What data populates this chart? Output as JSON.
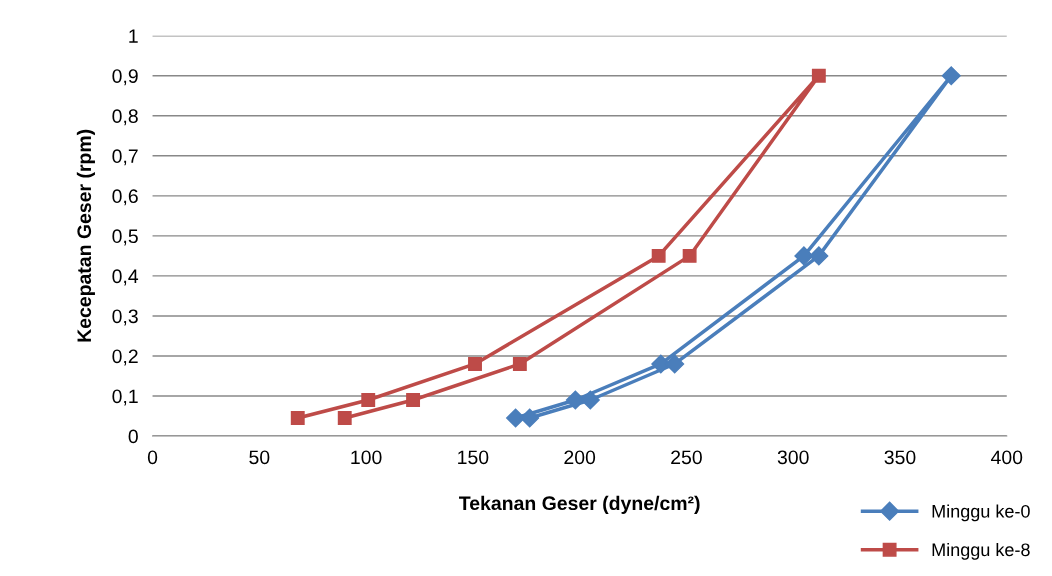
{
  "chart_data": {
    "type": "line",
    "xlabel": "Tekanan Geser (dyne/cm²)",
    "ylabel": "Kecepatan Geser (rpm)",
    "series": [
      {
        "name": "Minggu ke-0",
        "color": "#4a7ebb",
        "marker": "diamond",
        "x": [
          170,
          198,
          238,
          305,
          374,
          312,
          244.5,
          205,
          176.6
        ],
        "values": [
          0.045,
          0.09,
          0.18,
          0.45,
          0.9,
          0.45,
          0.18,
          0.09,
          0.045
        ]
      },
      {
        "name": "Minggu ke-8",
        "color": "#be4b48",
        "marker": "square",
        "x": [
          68,
          101,
          151,
          237,
          312,
          251.5,
          172,
          122,
          90
        ],
        "values": [
          0.045,
          0.09,
          0.18,
          0.45,
          0.9,
          0.45,
          0.18,
          0.09,
          0.045
        ]
      }
    ],
    "xlim": [
      0,
      400
    ],
    "xticks": [
      0,
      50,
      100,
      150,
      200,
      250,
      300,
      350,
      400
    ],
    "ylim": [
      0,
      1
    ],
    "yticks": [
      0,
      {
        "value": 0.1,
        "label": "0,1"
      },
      {
        "value": 0.2,
        "label": "0,2"
      },
      {
        "value": 0.3,
        "label": "0,3"
      },
      {
        "value": 0.4,
        "label": "0,4"
      },
      {
        "value": 0.5,
        "label": "0,5"
      },
      {
        "value": 0.6,
        "label": "0,6"
      },
      {
        "value": 0.7,
        "label": "0,7"
      },
      {
        "value": 0.8,
        "label": "0,8"
      },
      {
        "value": 0.9,
        "label": "0,9"
      },
      1
    ],
    "grid": "y",
    "legend": "bottom right",
    "line_style": "solid"
  }
}
